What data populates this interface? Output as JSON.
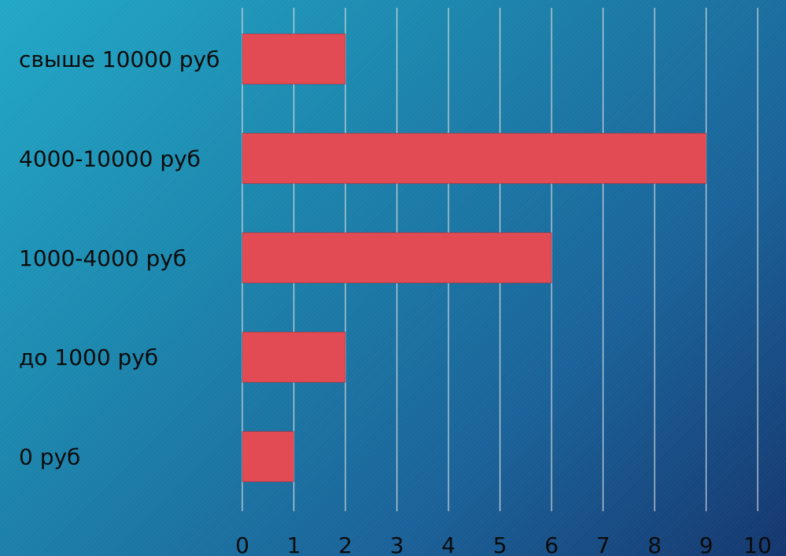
{
  "chart_data": {
    "type": "bar",
    "orientation": "horizontal",
    "categories": [
      "свыше 10000 руб",
      "4000-10000 руб",
      "1000-4000 руб",
      "до 1000 руб",
      "0 руб"
    ],
    "values": [
      2,
      9,
      6,
      2,
      1
    ],
    "xlim": [
      0,
      10
    ],
    "x_ticks": [
      "0",
      "1",
      "2",
      "3",
      "4",
      "5",
      "6",
      "7",
      "8",
      "9",
      "10"
    ],
    "title": "",
    "xlabel": "",
    "ylabel": "",
    "grid": true,
    "legend": "none",
    "colors": {
      "bar": "#e24b54",
      "grid": "#cfd8dc",
      "text": "#0b0b0b"
    }
  }
}
